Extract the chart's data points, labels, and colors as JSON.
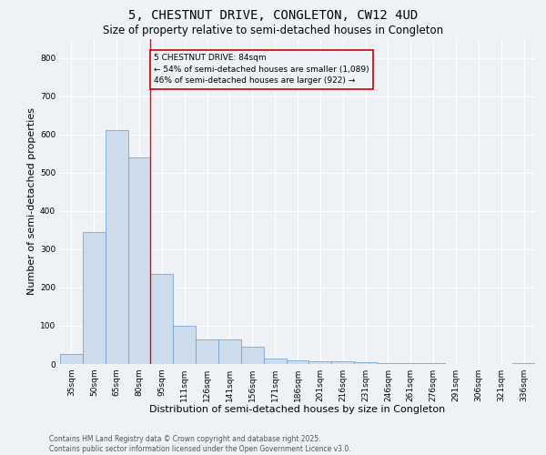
{
  "title": "5, CHESTNUT DRIVE, CONGLETON, CW12 4UD",
  "subtitle": "Size of property relative to semi-detached houses in Congleton",
  "xlabel": "Distribution of semi-detached houses by size in Congleton",
  "ylabel": "Number of semi-detached properties",
  "categories": [
    "35sqm",
    "50sqm",
    "65sqm",
    "80sqm",
    "95sqm",
    "111sqm",
    "126sqm",
    "141sqm",
    "156sqm",
    "171sqm",
    "186sqm",
    "201sqm",
    "216sqm",
    "231sqm",
    "246sqm",
    "261sqm",
    "276sqm",
    "291sqm",
    "306sqm",
    "321sqm",
    "336sqm"
  ],
  "values": [
    25,
    345,
    610,
    540,
    235,
    100,
    65,
    65,
    45,
    15,
    10,
    8,
    8,
    5,
    3,
    2,
    2,
    1,
    1,
    1,
    3
  ],
  "bar_color": "#ccdcec",
  "bar_edge_color": "#6699cc",
  "background_color": "#eef2f7",
  "grid_color": "#ffffff",
  "property_label": "5 CHESTNUT DRIVE: 84sqm",
  "pct_smaller": 54,
  "n_smaller": 1089,
  "pct_larger": 46,
  "n_larger": 922,
  "vline_x": 3.5,
  "annotation_box_edge_color": "#cc0000",
  "ylim": [
    0,
    850
  ],
  "yticks": [
    0,
    100,
    200,
    300,
    400,
    500,
    600,
    700,
    800
  ],
  "footer": "Contains HM Land Registry data © Crown copyright and database right 2025.\nContains public sector information licensed under the Open Government Licence v3.0.",
  "title_fontsize": 10,
  "subtitle_fontsize": 8.5,
  "axis_label_fontsize": 8,
  "tick_fontsize": 6.5,
  "annotation_fontsize": 6.5,
  "footer_fontsize": 5.5
}
